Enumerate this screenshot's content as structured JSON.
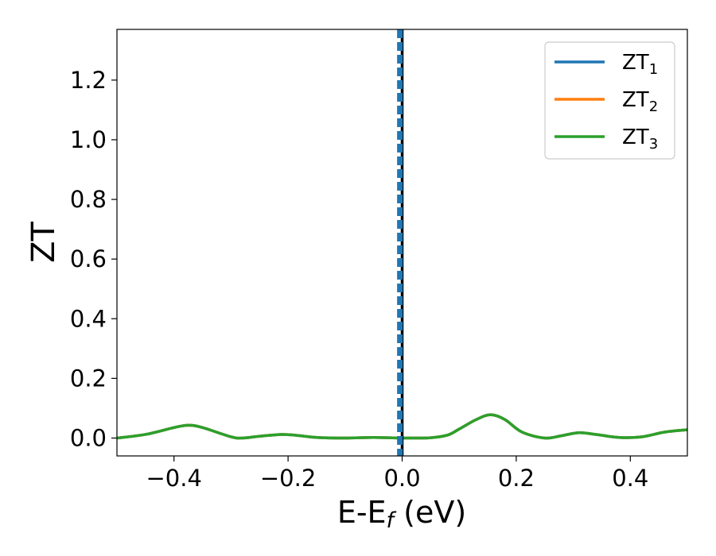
{
  "chart_data": {
    "type": "line",
    "xlabel": {
      "base": "E-E",
      "sub": "f",
      "rest": " (eV)"
    },
    "ylabel": "ZT",
    "xlim": [
      -0.5,
      0.5
    ],
    "ylim": [
      -0.06,
      1.37
    ],
    "xticks": [
      -0.4,
      -0.2,
      0.0,
      0.2,
      0.4
    ],
    "xtick_labels": [
      "−0.4",
      "−0.2",
      "0.0",
      "0.2",
      "0.4"
    ],
    "yticks": [
      0.0,
      0.2,
      0.4,
      0.6,
      0.8,
      1.0,
      1.2
    ],
    "ytick_labels": [
      "0.0",
      "0.2",
      "0.4",
      "0.6",
      "0.8",
      "1.0",
      "1.2"
    ],
    "grid": false,
    "legend_position": "top-right",
    "vertical_lines": [
      {
        "x": 0.0,
        "color": "#000000",
        "style": "solid"
      },
      {
        "x": -0.004,
        "color": "#1f77b4",
        "style": "dashed"
      }
    ],
    "series": [
      {
        "name": "ZT",
        "name_sub": "1",
        "color": "#1f77b4",
        "x": [
          -0.5,
          -0.45,
          -0.4,
          -0.375,
          -0.35,
          -0.3,
          -0.28,
          -0.25,
          -0.21,
          -0.18,
          -0.15,
          -0.1,
          -0.05,
          0.0,
          0.05,
          0.08,
          0.1,
          0.13,
          0.155,
          0.18,
          0.21,
          0.25,
          0.28,
          0.31,
          0.34,
          0.38,
          0.42,
          0.46,
          0.5
        ],
        "y": [
          0.0,
          0.012,
          0.035,
          0.043,
          0.035,
          0.004,
          0.0,
          0.006,
          0.012,
          0.008,
          0.002,
          0.0,
          0.002,
          0.0,
          0.001,
          0.01,
          0.03,
          0.062,
          0.078,
          0.062,
          0.02,
          0.0,
          0.008,
          0.018,
          0.012,
          0.002,
          0.004,
          0.02,
          0.028
        ]
      },
      {
        "name": "ZT",
        "name_sub": "2",
        "color": "#ff7f0e",
        "x": [
          -0.5,
          -0.45,
          -0.4,
          -0.375,
          -0.35,
          -0.3,
          -0.28,
          -0.25,
          -0.21,
          -0.18,
          -0.15,
          -0.1,
          -0.05,
          0.0,
          0.05,
          0.08,
          0.1,
          0.13,
          0.155,
          0.18,
          0.21,
          0.25,
          0.28,
          0.31,
          0.34,
          0.38,
          0.42,
          0.46,
          0.5
        ],
        "y": [
          0.0,
          0.012,
          0.035,
          0.043,
          0.035,
          0.004,
          0.0,
          0.006,
          0.012,
          0.008,
          0.002,
          0.0,
          0.002,
          0.0,
          0.001,
          0.01,
          0.03,
          0.062,
          0.078,
          0.062,
          0.02,
          0.0,
          0.008,
          0.018,
          0.012,
          0.002,
          0.004,
          0.02,
          0.028
        ]
      },
      {
        "name": "ZT",
        "name_sub": "3",
        "color": "#2ca02c",
        "x": [
          -0.5,
          -0.45,
          -0.4,
          -0.375,
          -0.35,
          -0.3,
          -0.28,
          -0.25,
          -0.21,
          -0.18,
          -0.15,
          -0.1,
          -0.05,
          0.0,
          0.05,
          0.08,
          0.1,
          0.13,
          0.155,
          0.18,
          0.21,
          0.25,
          0.28,
          0.31,
          0.34,
          0.38,
          0.42,
          0.46,
          0.5
        ],
        "y": [
          0.0,
          0.012,
          0.035,
          0.043,
          0.035,
          0.004,
          0.0,
          0.006,
          0.012,
          0.008,
          0.002,
          0.0,
          0.002,
          0.0,
          0.001,
          0.01,
          0.03,
          0.062,
          0.078,
          0.062,
          0.02,
          0.0,
          0.008,
          0.018,
          0.012,
          0.002,
          0.004,
          0.02,
          0.028
        ]
      }
    ]
  }
}
